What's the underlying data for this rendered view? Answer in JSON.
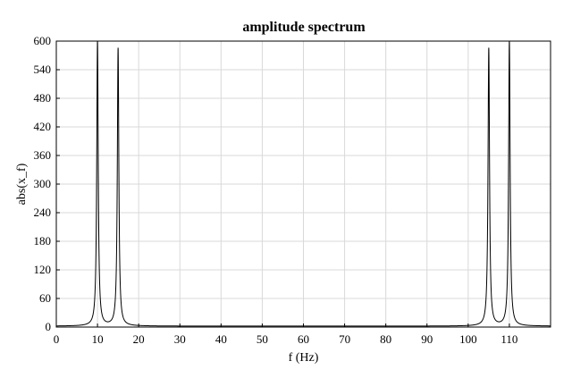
{
  "chart_data": {
    "type": "line",
    "title": "amplitude spectrum",
    "xlabel": "f (Hz)",
    "ylabel": "abs(x_f)",
    "xlim": [
      0,
      120
    ],
    "ylim": [
      0,
      600
    ],
    "xticks": [
      0,
      10,
      20,
      30,
      40,
      50,
      60,
      70,
      80,
      90,
      100,
      110
    ],
    "yticks": [
      0,
      60,
      120,
      180,
      240,
      300,
      360,
      420,
      480,
      540,
      600
    ],
    "grid": true,
    "series": [
      {
        "color": "#000000",
        "peaks": [
          {
            "x": 10,
            "y": 600
          },
          {
            "x": 15,
            "y": 585
          },
          {
            "x": 105,
            "y": 585
          },
          {
            "x": 110,
            "y": 600
          }
        ],
        "baseline": 2
      }
    ]
  }
}
